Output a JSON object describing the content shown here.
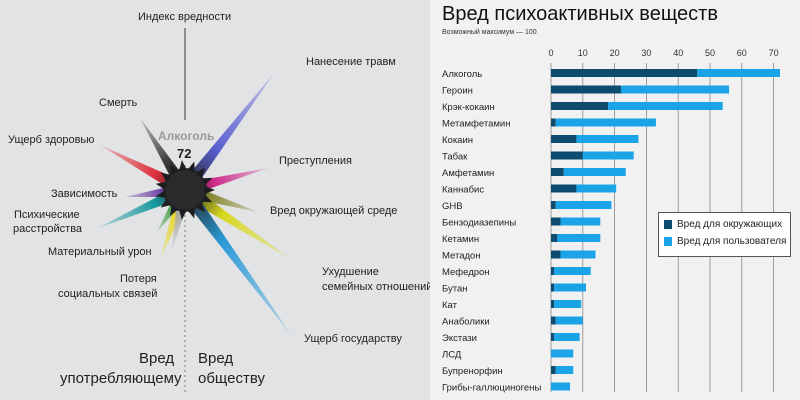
{
  "left_panel": {
    "substance": "Алкоголь",
    "score": "72",
    "labels": {
      "index": "Индекс вредности",
      "injury": "Нанесение травм",
      "death": "Смерть",
      "health": "Ущерб здоровью",
      "crime": "Преступления",
      "environment": "Вред окружающей среде",
      "dependence": "Зависимость",
      "mental1": "Психические",
      "mental2": "расстройства",
      "material": "Материальный урон",
      "social1": "Потеря",
      "social2": "социальных связей",
      "family1": "Ухудшение",
      "family2": "семейных отношений",
      "state": "Ущерб государству"
    },
    "bottom_left1": "Вред",
    "bottom_left2": "употребляющему",
    "bottom_right1": "Вред",
    "bottom_right2": "обществу"
  },
  "chart_data": {
    "type": "bar",
    "stacked": true,
    "orientation": "horizontal",
    "title": "Вред психоактивных веществ",
    "subtitle": "Возможный максимум — 100",
    "xlim": [
      0,
      72
    ],
    "xticks": [
      0,
      10,
      20,
      30,
      40,
      50,
      60,
      70
    ],
    "grid": true,
    "legend_position": "right",
    "categories": [
      "Алкоголь",
      "Героин",
      "Крэк-кокаин",
      "Метамфетамин",
      "Кокаин",
      "Табак",
      "Амфетамин",
      "Каннабис",
      "GHB",
      "Бензодиазепины",
      "Кетамин",
      "Метадон",
      "Мефедрон",
      "Бутан",
      "Кат",
      "Анаболики",
      "Экстази",
      "ЛСД",
      "Бупренорфин",
      "Грибы-галлюциногены"
    ],
    "series": [
      {
        "name": "Вред для окружающих",
        "color": "#0d4c6e",
        "values": [
          46,
          22,
          18,
          1.5,
          8,
          10,
          4,
          8,
          1.5,
          3,
          2,
          3,
          1,
          1,
          1,
          1.5,
          1,
          0,
          1.5,
          0
        ]
      },
      {
        "name": "Вред для пользователя",
        "color": "#1ba3e8",
        "values": [
          26,
          34,
          36,
          31.5,
          19.5,
          16,
          19.5,
          12.5,
          17.5,
          12.5,
          13.5,
          11,
          11.5,
          10,
          8.5,
          8.5,
          8,
          7,
          5.5,
          6
        ]
      }
    ]
  }
}
